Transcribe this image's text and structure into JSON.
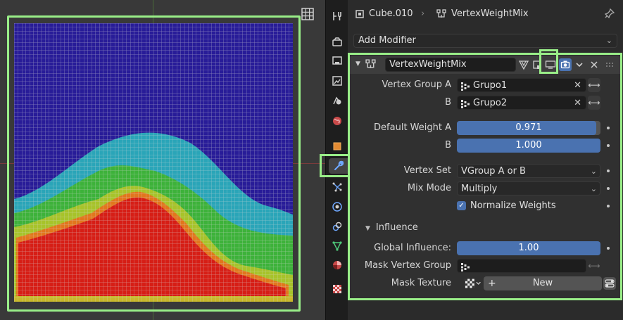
{
  "header": {
    "object_name": "Cube.010",
    "modifier_name": "VertexWeightMix"
  },
  "add_modifier": {
    "label": "Add Modifier"
  },
  "modifier": {
    "name": "VertexWeightMix",
    "fields": {
      "vertex_group_a": {
        "label": "Vertex Group A",
        "value": "Grupo1"
      },
      "vertex_group_b": {
        "label": "B",
        "value": "Grupo2"
      },
      "default_weight_a": {
        "label": "Default Weight A",
        "value": "0.971",
        "fraction": 0.971
      },
      "default_weight_b": {
        "label": "B",
        "value": "1.000",
        "fraction": 1.0
      },
      "vertex_set": {
        "label": "Vertex Set",
        "value": "VGroup A or B"
      },
      "mix_mode": {
        "label": "Mix Mode",
        "value": "Multiply"
      },
      "normalize_weights": {
        "label": "Normalize Weights",
        "checked": true
      }
    },
    "influence": {
      "title": "Influence",
      "global_influence": {
        "label": "Global Influence:",
        "value": "1.00",
        "fraction": 1.0
      },
      "mask_vertex_group": {
        "label": "Mask Vertex Group",
        "value": ""
      },
      "mask_texture": {
        "label": "Mask Texture",
        "new_label": "New"
      }
    }
  },
  "icons": {
    "tabs": [
      "tool-icon",
      "render-icon",
      "output-icon",
      "view-layer-icon",
      "scene-icon",
      "world-icon",
      "object-icon",
      "modifier-icon",
      "particles-icon",
      "physics-icon",
      "constraints-icon",
      "data-icon",
      "material-icon",
      "texture-icon"
    ]
  },
  "colors": {
    "accent": "#4a72b0",
    "highlight": "#99ee88"
  }
}
